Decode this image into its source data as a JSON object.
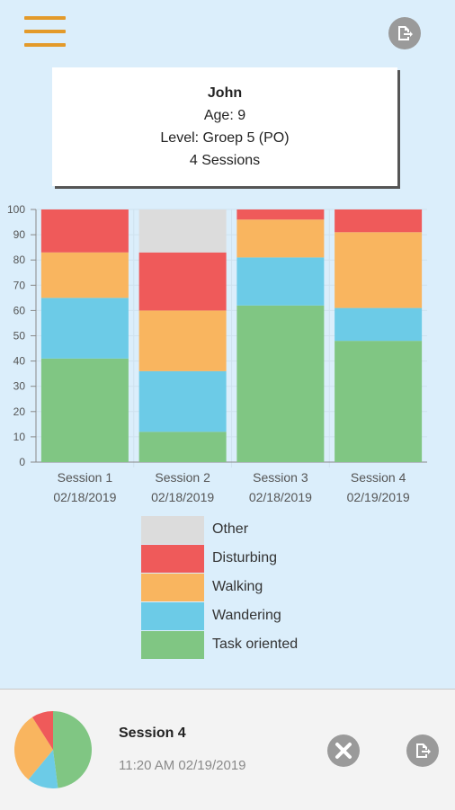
{
  "header": {
    "menu_icon": "hamburger-icon",
    "export_icon": "export-icon"
  },
  "profile": {
    "name": "John",
    "age": "Age: 9",
    "level": "Level: Groep 5 (PO)",
    "sessions": "4 Sessions"
  },
  "colors": {
    "Other": "#dcdcdc",
    "Disturbing": "#ef5a5a",
    "Walking": "#f9b55f",
    "Wandering": "#6ccbe7",
    "Task oriented": "#80c683"
  },
  "chart_data": {
    "type": "bar",
    "stacked": true,
    "categories": [
      [
        "Session 1",
        "02/18/2019"
      ],
      [
        "Session 2",
        "02/18/2019"
      ],
      [
        "Session 3",
        "02/18/2019"
      ],
      [
        "Session 4",
        "02/19/2019"
      ]
    ],
    "series": [
      {
        "name": "Task oriented",
        "values": [
          41,
          12,
          62,
          48
        ]
      },
      {
        "name": "Wandering",
        "values": [
          24,
          24,
          19,
          13
        ]
      },
      {
        "name": "Walking",
        "values": [
          18,
          24,
          15,
          30
        ]
      },
      {
        "name": "Disturbing",
        "values": [
          17,
          23,
          4,
          9
        ]
      },
      {
        "name": "Other",
        "values": [
          0,
          17,
          0,
          0
        ]
      }
    ],
    "yticks": [
      0,
      10,
      20,
      30,
      40,
      50,
      60,
      70,
      80,
      90,
      100
    ],
    "ylim": [
      0,
      100
    ],
    "legend_order": [
      "Other",
      "Disturbing",
      "Walking",
      "Wandering",
      "Task oriented"
    ],
    "legend_position": "bottom"
  },
  "bottom_bar": {
    "title": "Session 4",
    "time": "11:20 AM 02/19/2019",
    "pie_values": [
      {
        "name": "Task oriented",
        "value": 48
      },
      {
        "name": "Wandering",
        "value": 13
      },
      {
        "name": "Walking",
        "value": 30
      },
      {
        "name": "Disturbing",
        "value": 9
      }
    ],
    "close_icon": "close-icon",
    "export_icon": "export-icon"
  }
}
